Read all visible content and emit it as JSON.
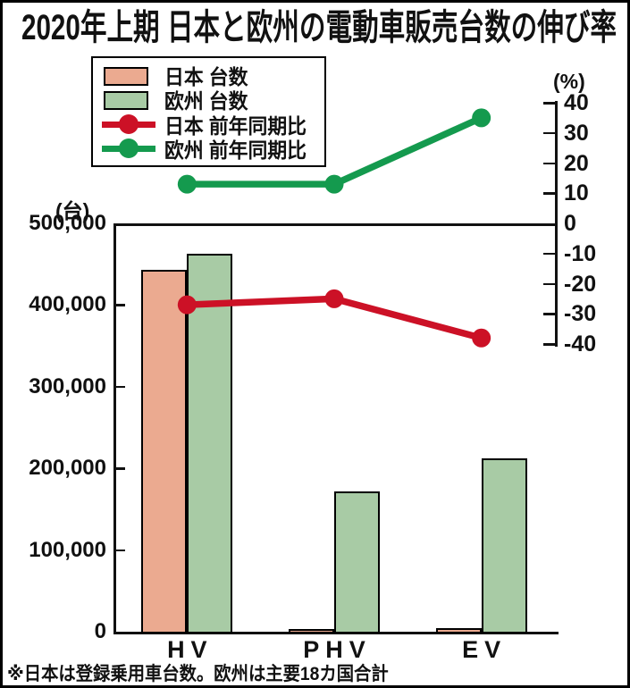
{
  "title": "2020年上期 日本と欧州の電動車販売台数の伸び率",
  "footnote": "※日本は登録乗用車台数。欧州は主要18カ国合計",
  "colors": {
    "japan_bar": "#ebaa90",
    "europe_bar": "#a8cba5",
    "japan_line": "#cc1126",
    "europe_line": "#149a4e",
    "axis": "#111111"
  },
  "legend": {
    "items": [
      {
        "label": "日本 台数",
        "type": "bar",
        "color": "#ebaa90"
      },
      {
        "label": "欧州 台数",
        "type": "bar",
        "color": "#a8cba5"
      },
      {
        "label": "日本 前年同期比",
        "type": "line",
        "color": "#cc1126"
      },
      {
        "label": "欧州 前年同期比",
        "type": "line",
        "color": "#149a4e"
      }
    ]
  },
  "chart_data": {
    "type": "bar+line",
    "categories": [
      "HV",
      "PHV",
      "EV"
    ],
    "bar_series": [
      {
        "name": "日本 台数",
        "color": "#ebaa90",
        "values": [
          445000,
          5000,
          6500
        ]
      },
      {
        "name": "欧州 台数",
        "color": "#a8cba5",
        "values": [
          465000,
          174000,
          214000
        ]
      }
    ],
    "line_series": [
      {
        "name": "日本 前年同期比",
        "color": "#cc1126",
        "values": [
          -27,
          -25,
          -38
        ]
      },
      {
        "name": "欧州 前年同期比",
        "color": "#149a4e",
        "values": [
          13,
          13,
          35
        ]
      }
    ],
    "left_axis": {
      "label": "(台)",
      "min": 0,
      "max": 500000,
      "tick_step": 100000,
      "ticks": [
        "500,000",
        "400,000",
        "300,000",
        "200,000",
        "100,000",
        "0"
      ]
    },
    "right_axis": {
      "label": "(%)",
      "min": -40,
      "max": 40,
      "tick_step": 10,
      "ticks": [
        "40",
        "30",
        "20",
        "10",
        "0",
        "-10",
        "-20",
        "-30",
        "-40"
      ]
    },
    "grid": false,
    "legend_position": "top-left"
  }
}
